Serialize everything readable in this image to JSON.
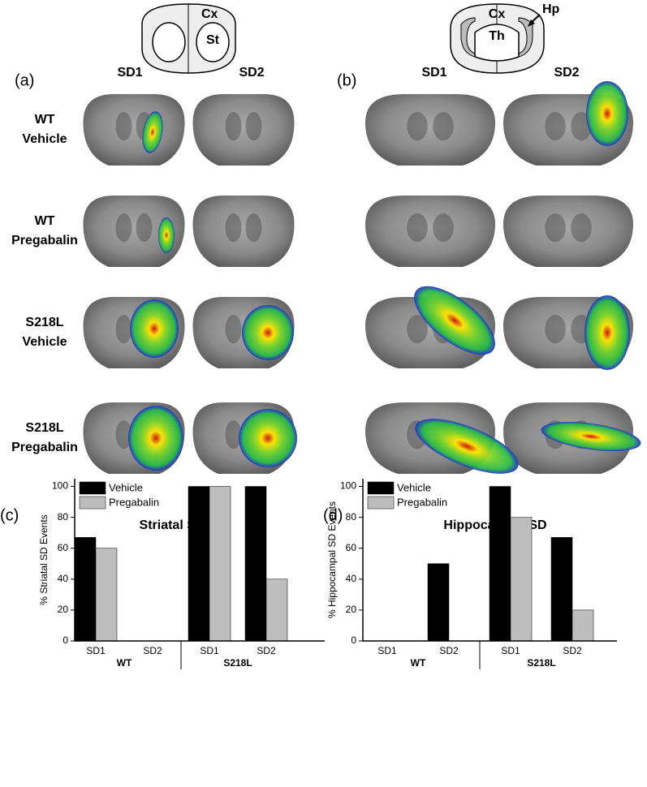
{
  "figure": {
    "panel_a": {
      "label": "(a)",
      "schematic_labels": [
        "Cx",
        "St"
      ],
      "columns": [
        "SD1",
        "SD2"
      ]
    },
    "panel_b": {
      "label": "(b)",
      "schematic_labels": [
        "Cx",
        "Th",
        "Hp"
      ],
      "columns": [
        "SD1",
        "SD2"
      ]
    },
    "rows": [
      [
        "WT",
        "Vehicle"
      ],
      [
        "WT",
        "Pregabalin"
      ],
      [
        "S218L",
        "Vehicle"
      ],
      [
        "S218L",
        "Pregabalin"
      ]
    ]
  },
  "chart_data": [
    {
      "type": "bar",
      "panel_label": "(c)",
      "title": "Striatal SD",
      "y_label": "% Striatal SD Events",
      "categories": [
        "SD1",
        "SD2",
        "SD1",
        "SD2"
      ],
      "groups": [
        "WT",
        "S218L"
      ],
      "series": [
        {
          "name": "Vehicle",
          "color": "#000000",
          "values": [
            67,
            0,
            100,
            100
          ]
        },
        {
          "name": "Pregabalin",
          "color": "#bdbdbd",
          "values": [
            60,
            0,
            100,
            40
          ]
        }
      ],
      "ylim": [
        0,
        105
      ],
      "yticks": [
        0,
        20,
        40,
        60,
        80,
        100
      ],
      "legend": "upper left"
    },
    {
      "type": "bar",
      "panel_label": "(d)",
      "title": "Hippocampal SD",
      "y_label": "% Hippocampal SD Events",
      "categories": [
        "SD1",
        "SD2",
        "SD1",
        "SD2"
      ],
      "groups": [
        "WT",
        "S218L"
      ],
      "series": [
        {
          "name": "Vehicle",
          "color": "#000000",
          "values": [
            0,
            50,
            100,
            67
          ]
        },
        {
          "name": "Pregabalin",
          "color": "#bdbdbd",
          "values": [
            0,
            0,
            80,
            20
          ]
        }
      ],
      "ylim": [
        0,
        105
      ],
      "yticks": [
        0,
        20,
        40,
        60,
        80,
        100
      ],
      "legend": "upper left"
    }
  ]
}
